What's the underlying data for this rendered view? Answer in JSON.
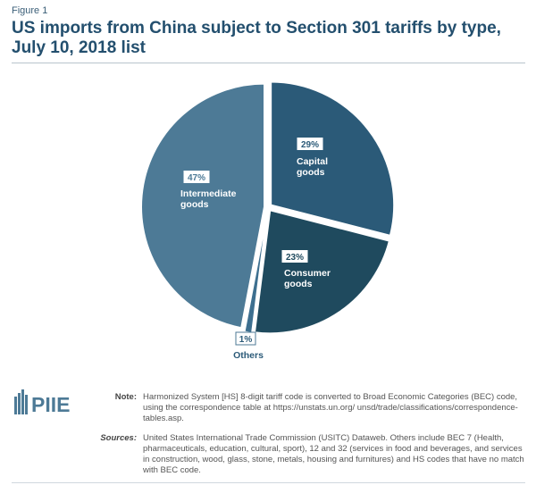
{
  "figure_label": "Figure 1",
  "title_line1": "US imports from China subject to Section 301 tariffs by type,",
  "title_line2": "July 10, 2018 list",
  "chart_data": {
    "type": "pie",
    "slices": [
      {
        "label_lines": [
          "Capital",
          "goods"
        ],
        "pct_label": "29%",
        "value": 29,
        "color": "#2b5a78"
      },
      {
        "label_lines": [
          "Consumer",
          "goods"
        ],
        "pct_label": "23%",
        "value": 23,
        "color": "#1f4a5e"
      },
      {
        "label_lines": [
          "Others"
        ],
        "pct_label": "1%",
        "value": 1,
        "color": "#3d6f8f"
      },
      {
        "label_lines": [
          "Intermediate",
          "goods"
        ],
        "pct_label": "47%",
        "value": 47,
        "color": "#4d7a96"
      }
    ]
  },
  "logo_text": "PIIE",
  "note_label": "Note:",
  "note_text": "Harmonized System [HS] 8-digit tariff code is converted to Broad Economic Categories (BEC) code, using the correspondence table at https://unstats.un.org/ unsd/trade/classifications/correspondence-tables.asp.",
  "sources_label": "Sources:",
  "sources_text": "United States International Trade Commission (USITC) Dataweb. Others include BEC 7 (Health, pharmaceuticals, education, cultural, sport), 12 and 32 (services in food and beverages, and services in construction, wood, glass, stone, metals, housing and furnitures) and HS codes that have no match with BEC code."
}
